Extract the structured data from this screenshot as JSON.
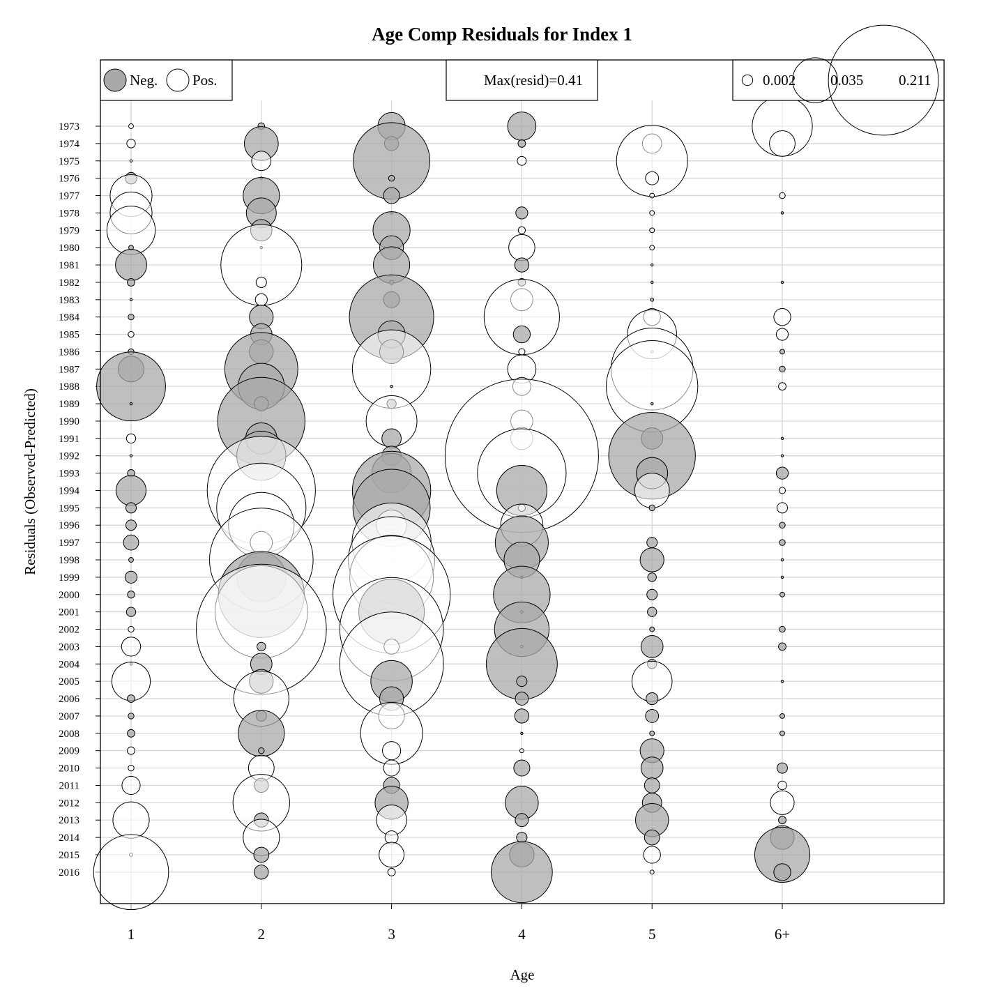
{
  "chart_data": {
    "type": "bubble",
    "title": "Age Comp Residuals for Index 1",
    "xlabel": "Age",
    "ylabel": "Residuals (Observed-Predicted)",
    "max_resid_text": "Max(resid)=0.41",
    "legend_sign": {
      "neg": "Neg.",
      "pos": "Pos."
    },
    "legend_sizes": [
      "0.002",
      "0.035",
      "0.211"
    ],
    "legend_size_values": [
      0.002,
      0.035,
      0.211
    ],
    "max_resid": 0.41,
    "neg_color": "#a9a9a9",
    "pos_color": "#ffffff",
    "grid": true,
    "categories": [
      "1",
      "2",
      "3",
      "4",
      "5",
      "6+"
    ],
    "years": [
      "1973",
      "1974",
      "1975",
      "1976",
      "1977",
      "1978",
      "1979",
      "1980",
      "1981",
      "1982",
      "1983",
      "1984",
      "1985",
      "1986",
      "1987",
      "1988",
      "1989",
      "1990",
      "1991",
      "1992",
      "1993",
      "1994",
      "1995",
      "1996",
      "1997",
      "1998",
      "1999",
      "2000",
      "2001",
      "2002",
      "2003",
      "2004",
      "2005",
      "2006",
      "2007",
      "2008",
      "2009",
      "2010",
      "2011",
      "2012",
      "2013",
      "2014",
      "2015",
      "2016"
    ],
    "series": [
      {
        "name": "1",
        "values": [
          0.0004,
          0.0013,
          0.0001,
          -0.0023,
          0.0306,
          0.0306,
          0.0407,
          -0.0004,
          -0.017,
          -0.001,
          -0.0001,
          -0.0006,
          0.0006,
          -0.0006,
          -0.0115,
          -0.0828,
          -0.0001,
          0,
          0.0015,
          -0.0001,
          -0.0009,
          -0.0157,
          -0.0019,
          -0.0019,
          -0.004,
          -0.0004,
          -0.0025,
          -0.0009,
          -0.0015,
          0.0006,
          0.0063,
          -0.0001,
          0.0258,
          -0.001,
          -0.0006,
          -0.001,
          0.001,
          0.0006,
          0.0058,
          0,
          0.023,
          0,
          0.0002,
          0.0981
        ]
      },
      {
        "name": "2",
        "values": [
          -0.0008,
          -0.02,
          0.0065,
          -0.0001,
          -0.023,
          -0.0157,
          -0.008,
          -0.0001,
          0.114,
          0.0019,
          0.0025,
          -0.0099,
          -0.008,
          -0.0099,
          -0.093,
          -0.037,
          -0.0035,
          -0.133,
          -0.017,
          -0.042,
          0,
          0.204,
          0.139,
          0.075,
          0.0085,
          0.187,
          -0.042,
          -0.129,
          0.149,
          0.295,
          -0.0013,
          -0.008,
          -0.0099,
          0.053,
          -0.0019,
          -0.037,
          -0.0006,
          0.0115,
          -0.0035,
          0.056,
          -0.0035,
          0.023,
          -0.004,
          -0.0035
        ]
      },
      {
        "name": "3",
        "values": [
          -0.013,
          -0.0035,
          -0.102,
          -0.0006,
          -0.0045,
          -0.0001,
          -0.024,
          -0.0099,
          -0.023,
          -0.0003,
          -0.0045,
          -0.124,
          -0.013,
          -0.0099,
          0.107,
          -0.0001,
          -0.0015,
          0.045,
          -0.0065,
          -0.0065,
          -0.027,
          -0.107,
          -0.104,
          0.016,
          0.109,
          0.13,
          0.122,
          0.24,
          -0.075,
          0.187,
          0.004,
          0.188,
          -0.03,
          -0.0099,
          0.0115,
          0.067,
          0.0058,
          0.0045,
          -0.0045,
          -0.019,
          0.016,
          0.003,
          0.0109,
          0.001
        ]
      },
      {
        "name": "4",
        "values": [
          -0.014,
          -0.001,
          0.0014,
          0,
          0,
          -0.0025,
          0.0009,
          0.0119,
          -0.0035,
          -0.001,
          0.0085,
          0.099,
          -0.005,
          0.0007,
          0.014,
          0.0057,
          0,
          0.0085,
          0.0085,
          0.41,
          0.137,
          -0.044,
          0.0009,
          0.031,
          -0.049,
          -0.022,
          -0.0001,
          -0.056,
          0.0001,
          -0.052,
          0.0001,
          -0.088,
          -0.0019,
          -0.003,
          -0.0035,
          -0.0001,
          0.0003,
          -0.0045,
          0,
          -0.019,
          -0.003,
          -0.0019,
          -0.0105,
          -0.065
        ]
      },
      {
        "name": "5",
        "values": [
          0,
          0.0065,
          0.088,
          0.003,
          0.0004,
          0.0004,
          0.0004,
          0.0004,
          -0.0001,
          -0.0001,
          -0.0002,
          0.005,
          0.042,
          0.0001,
          0.117,
          0.146,
          -0.0001,
          0,
          -0.008,
          -0.131,
          -0.017,
          0.021,
          -0.0006,
          0,
          -0.0019,
          -0.0099,
          -0.0013,
          -0.0019,
          -0.0015,
          -0.0004,
          -0.0085,
          -0.0015,
          0.028,
          -0.0025,
          -0.003,
          -0.0004,
          -0.0099,
          -0.0085,
          -0.004,
          -0.0065,
          -0.019,
          -0.004,
          0.005,
          0.0003
        ]
      },
      {
        "name": "6+",
        "values": [
          0.063,
          0.0115,
          0,
          0,
          0.0006,
          -0.0001,
          0,
          0,
          0,
          -0.0001,
          0,
          0.005,
          0.0025,
          -0.0004,
          -0.0006,
          0.001,
          0,
          0,
          -0.0001,
          -0.0001,
          -0.0025,
          0.0007,
          0.0019,
          -0.0006,
          -0.0006,
          -0.0001,
          -0.0001,
          -0.0004,
          0,
          -0.0006,
          -0.001,
          0,
          -0.0001,
          0,
          -0.0004,
          -0.0004,
          0,
          -0.0019,
          0.0013,
          0.0099,
          -0.001,
          -0.0099,
          -0.053,
          -0.005
        ]
      }
    ]
  }
}
